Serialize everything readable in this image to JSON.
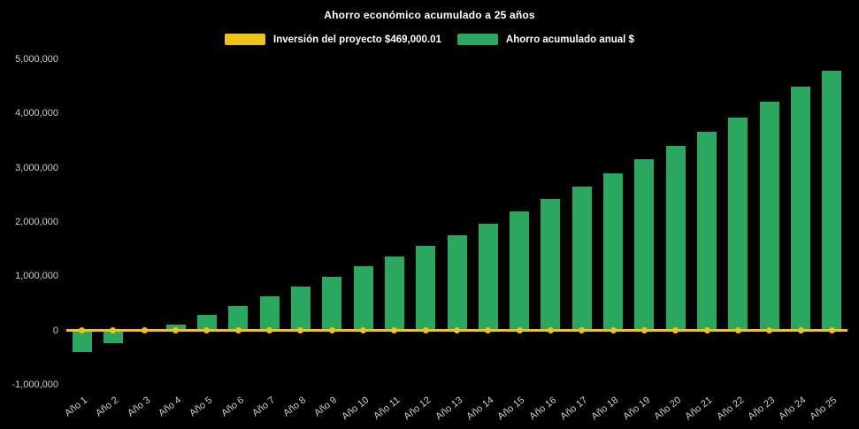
{
  "title": "Ahorro económico acumulado a 25 años",
  "legend": [
    {
      "label": "Inversión del proyecto $469,000.01",
      "color": "#EFC319"
    },
    {
      "label": "Ahorro acumulado anual $",
      "color": "#2AA860"
    }
  ],
  "chart_data": {
    "type": "bar",
    "title": "Ahorro económico acumulado a 25 años",
    "background": "#000000",
    "text_color": "#CCCCCC",
    "categories": [
      "Año 1",
      "Año 2",
      "Año 3",
      "Año 4",
      "Año 5",
      "Año 6",
      "Año 7",
      "Año 8",
      "Año 9",
      "Año 10",
      "Año 11",
      "Año 12",
      "Año 13",
      "Año 14",
      "Año 15",
      "Año 16",
      "Año 17",
      "Año 18",
      "Año 19",
      "Año 20",
      "Año 21",
      "Año 22",
      "Año 23",
      "Año 24",
      "Año 25"
    ],
    "series": [
      {
        "name": "Ahorro acumulado anual $",
        "type": "bar",
        "color": "#2AA860",
        "values": [
          -400000,
          -230000,
          0,
          110000,
          280000,
          450000,
          630000,
          810000,
          990000,
          1180000,
          1370000,
          1560000,
          1760000,
          1970000,
          2190000,
          2420000,
          2660000,
          2900000,
          3150000,
          3400000,
          3660000,
          3930000,
          4210000,
          4500000,
          4790000
        ]
      },
      {
        "name": "Inversión del proyecto $469,000.01",
        "type": "line",
        "color": "#EFC319",
        "values": [
          0,
          0,
          0,
          0,
          0,
          0,
          0,
          0,
          0,
          0,
          0,
          0,
          0,
          0,
          0,
          0,
          0,
          0,
          0,
          0,
          0,
          0,
          0,
          0,
          0
        ]
      }
    ],
    "ylim": [
      -1000000,
      5000000
    ],
    "y_ticks": [
      {
        "value": 5000000,
        "label": "5,000,000"
      },
      {
        "value": 4000000,
        "label": "4,000,000"
      },
      {
        "value": 3000000,
        "label": "3,000,000"
      },
      {
        "value": 2000000,
        "label": "2,000,000"
      },
      {
        "value": 1000000,
        "label": "1,000,000"
      },
      {
        "value": 0,
        "label": "0"
      },
      {
        "value": -1000000,
        "label": "-1,000,000"
      }
    ],
    "grid": false,
    "legend_position": "top"
  }
}
